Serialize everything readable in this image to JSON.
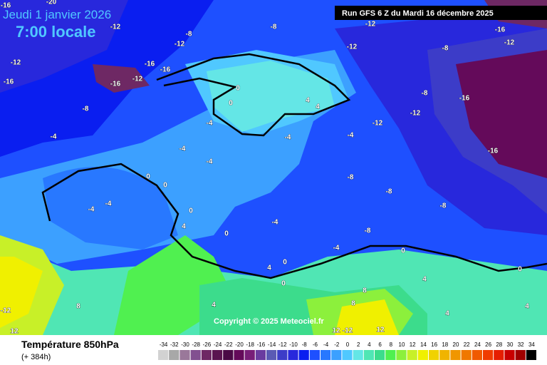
{
  "header": {
    "date": "Jeudi 1 janvier 2026",
    "time": "7:00 locale",
    "run": "Run GFS 6 Z du Mardi 16 décembre 2025"
  },
  "copyright": "Copyright © 2025 Meteociel.fr",
  "legend": {
    "title": "Température 850hPa",
    "lead": "(+ 384h)",
    "values": [
      -34,
      -32,
      -30,
      -28,
      -26,
      -24,
      -22,
      -20,
      -18,
      -16,
      -14,
      -12,
      -10,
      -8,
      -6,
      -4,
      -2,
      0,
      2,
      4,
      6,
      8,
      10,
      12,
      14,
      16,
      18,
      20,
      22,
      24,
      26,
      28,
      30,
      32,
      34
    ],
    "colors": [
      "#d2d2d2",
      "#a8a8a8",
      "#9a789a",
      "#825090",
      "#6e2864",
      "#5a1450",
      "#4a0a46",
      "#640a5a",
      "#781e78",
      "#6a3ca0",
      "#5a5ab4",
      "#3c3cc8",
      "#2828dc",
      "#0a1ef0",
      "#1e50ff",
      "#2878ff",
      "#3ca0ff",
      "#50c8ff",
      "#64e6e6",
      "#50e6b4",
      "#3cdc8c",
      "#50f050",
      "#8cf03c",
      "#c8f028",
      "#f0f000",
      "#f0d200",
      "#f0b400",
      "#f09600",
      "#f07800",
      "#f05a00",
      "#f03c00",
      "#e61e00",
      "#c80000",
      "#a00000",
      "#000000"
    ]
  },
  "map": {
    "contour_labels": [
      -16,
      -20,
      -12,
      -8,
      -12,
      -16,
      -16,
      -12,
      -16,
      -12,
      -16,
      -8,
      -4,
      -8,
      -12,
      -12,
      -8,
      -16,
      -12,
      -8,
      -16,
      -12,
      -12,
      -4,
      -16,
      -8,
      -8,
      -8,
      -8,
      0,
      0,
      4,
      4,
      -4,
      -4,
      -4,
      -4,
      0,
      0,
      -4,
      -4,
      0,
      4,
      0,
      -4,
      -4,
      0,
      0,
      4,
      0,
      4,
      8,
      8,
      4,
      8,
      4,
      -12,
      12,
      12,
      -12,
      12,
      4,
      0
    ]
  }
}
